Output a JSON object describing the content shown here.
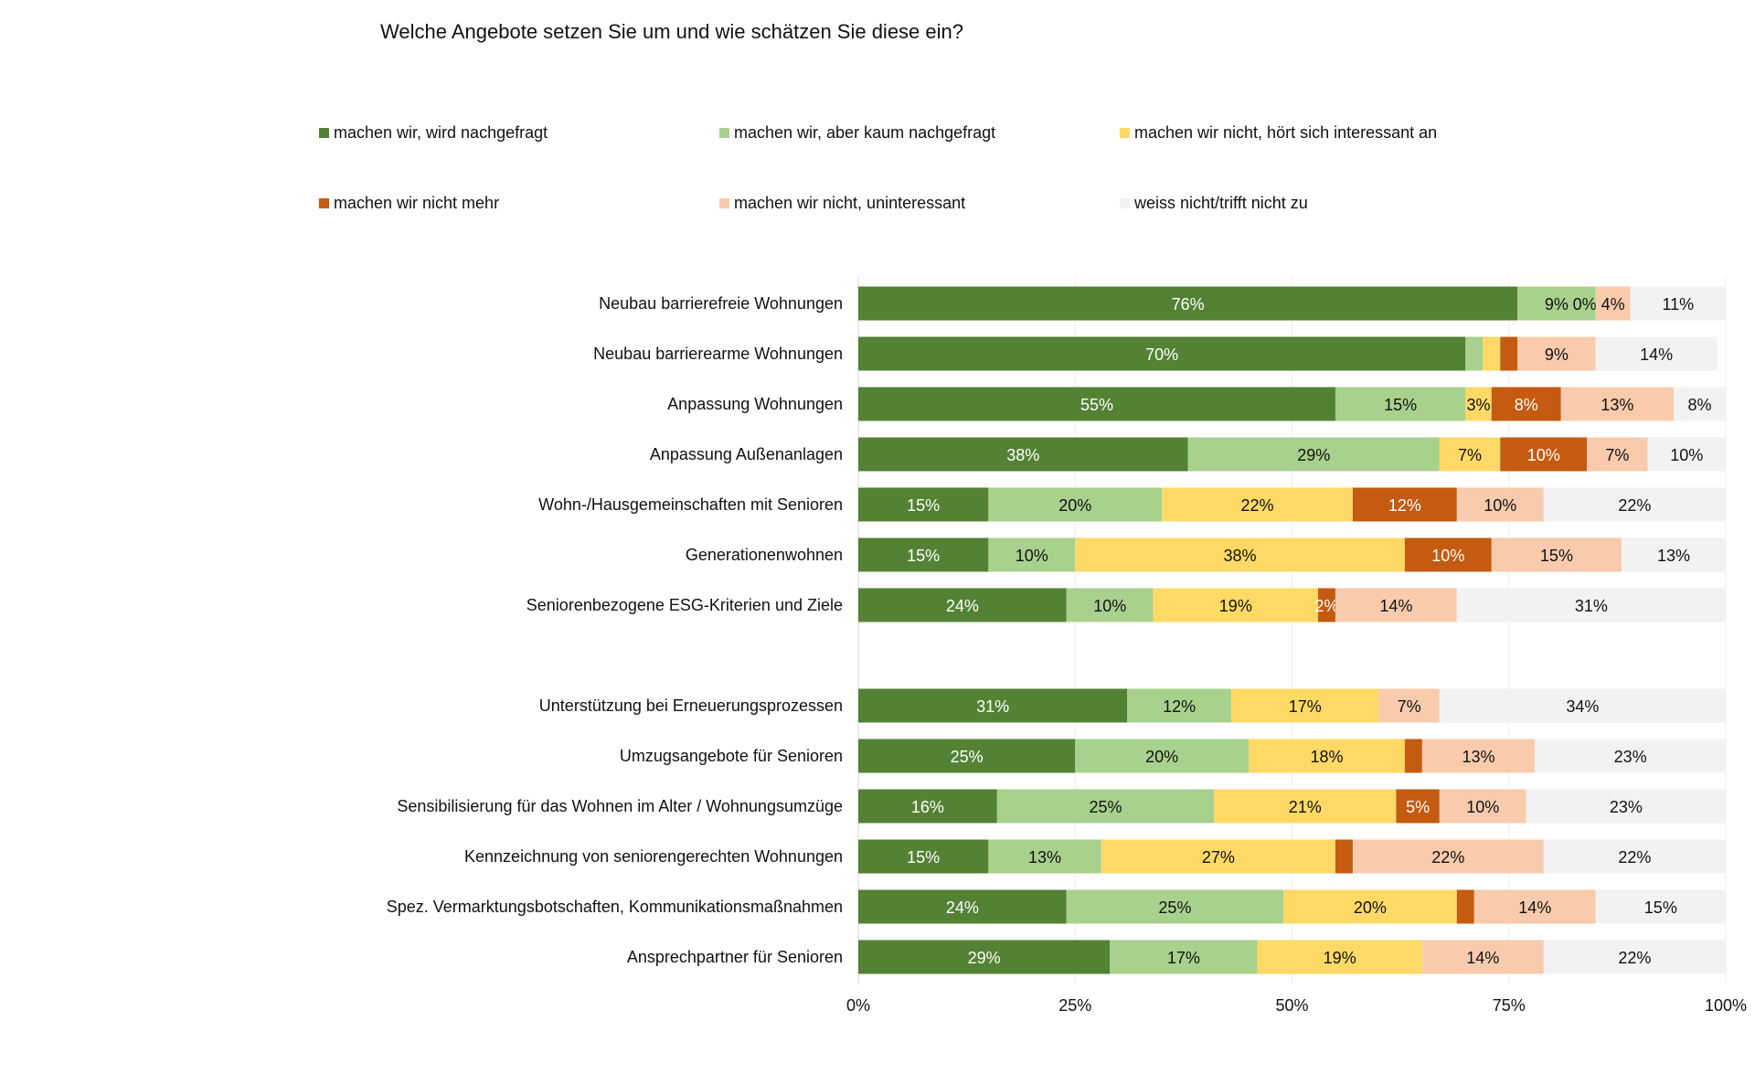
{
  "chart_data": {
    "type": "bar",
    "orientation": "horizontal",
    "stacked": "100%",
    "title": "Welche Angebote setzen Sie um und wie schätzen Sie diese ein?",
    "xlabel": "",
    "ylabel": "",
    "xlim": [
      0,
      100
    ],
    "x_ticks": [
      "0%",
      "25%",
      "50%",
      "75%",
      "100%"
    ],
    "grid": true,
    "legend_position": "top",
    "categories": [
      "Neubau barrierefreie Wohnungen",
      "Neubau barrierearme Wohnungen",
      "Anpassung Wohnungen",
      "Anpassung Außenanlagen",
      "Wohn-/Hausgemeinschaften mit Senioren",
      "Generationenwohnen",
      "Seniorenbezogene ESG-Kriterien und Ziele",
      "",
      "Unterstützung bei Erneuerungsprozessen",
      "Umzugsangebote für Senioren",
      "Sensibilisierung für das Wohnen im Alter / Wohnungsumzüge",
      "Kennzeichnung von seniorengerechten Wohnungen",
      "Spez. Vermarktungsbotschaften, Kommunikationsmaßnahmen",
      "Ansprechpartner für Senioren"
    ],
    "series": [
      {
        "name": "machen wir, wird nachgefragt",
        "color": "#548235",
        "label_color": "#ffffff",
        "values": [
          76,
          70,
          55,
          38,
          15,
          15,
          24,
          null,
          31,
          25,
          16,
          15,
          24,
          29
        ],
        "labels": [
          "76%",
          "70%",
          "55%",
          "38%",
          "15%",
          "15%",
          "24%",
          null,
          "31%",
          "25%",
          "16%",
          "15%",
          "24%",
          "29%"
        ]
      },
      {
        "name": "machen wir, aber kaum nachgefragt",
        "color": "#A9D18E",
        "label_color": "#111111",
        "values": [
          9,
          2,
          15,
          29,
          20,
          10,
          10,
          null,
          12,
          20,
          25,
          13,
          25,
          17
        ],
        "labels": [
          "9%",
          null,
          "15%",
          "29%",
          "20%",
          "10%",
          "10%",
          null,
          "12%",
          "20%",
          "25%",
          "13%",
          "25%",
          "17%"
        ]
      },
      {
        "name": "machen wir nicht, hört sich interessant an",
        "color": "#FFD966",
        "label_color": "#111111",
        "values": [
          0,
          2,
          3,
          7,
          22,
          38,
          19,
          null,
          17,
          18,
          21,
          27,
          20,
          19
        ],
        "labels": [
          "0%",
          null,
          "3%",
          "7%",
          "22%",
          "38%",
          "19%",
          null,
          "17%",
          "18%",
          "21%",
          "27%",
          "20%",
          "19%"
        ]
      },
      {
        "name": "machen wir nicht mehr",
        "color": "#C55A11",
        "label_color": "#ffffff",
        "values": [
          0,
          2,
          8,
          10,
          12,
          10,
          2,
          null,
          0,
          2,
          5,
          2,
          2,
          0
        ],
        "labels": [
          null,
          null,
          "8%",
          "10%",
          "12%",
          "10%",
          "2%",
          null,
          null,
          null,
          "5%",
          null,
          null,
          null
        ]
      },
      {
        "name": "machen wir nicht, uninteressant",
        "color": "#F8CBAD",
        "label_color": "#111111",
        "values": [
          4,
          9,
          13,
          7,
          10,
          15,
          14,
          null,
          7,
          13,
          10,
          22,
          14,
          14
        ],
        "labels": [
          "4%",
          "9%",
          "13%",
          "7%",
          "10%",
          "15%",
          "14%",
          null,
          "7%",
          "13%",
          "10%",
          "22%",
          "14%",
          "14%"
        ]
      },
      {
        "name": "weiss nicht/trifft nicht zu",
        "color": "#F2F2F2",
        "label_color": "#111111",
        "values": [
          11,
          14,
          8,
          10,
          22,
          13,
          31,
          null,
          34,
          23,
          23,
          22,
          15,
          22
        ],
        "labels": [
          "11%",
          "14%",
          "8%",
          "10%",
          "22%",
          "13%",
          "31%",
          null,
          "34%",
          "23%",
          "23%",
          "22%",
          "15%",
          "22%"
        ]
      }
    ]
  }
}
